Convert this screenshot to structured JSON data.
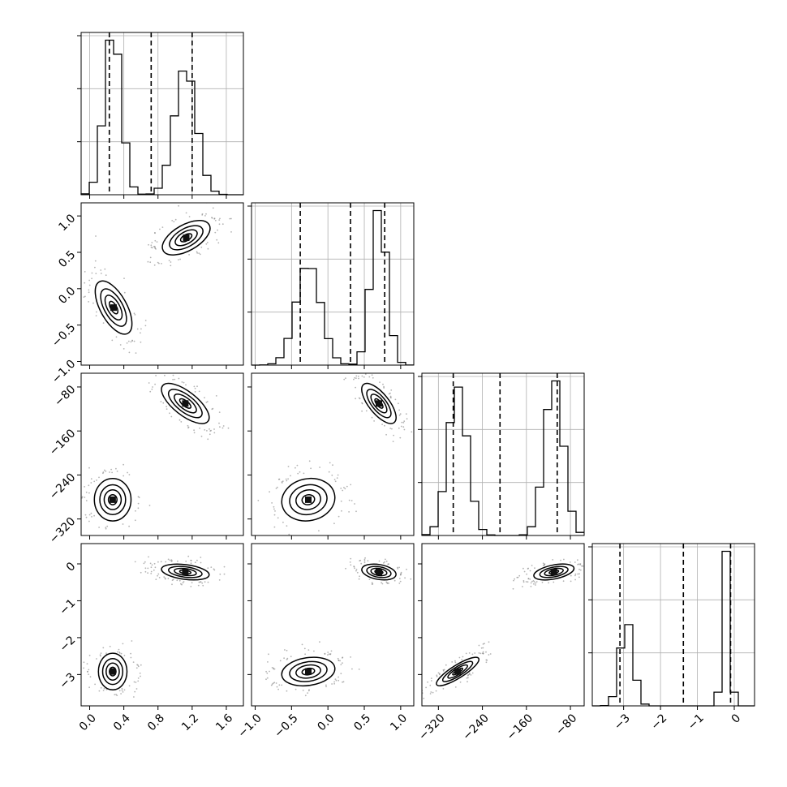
{
  "chart_data": {
    "type": "corner",
    "n_params": 4,
    "params": [
      {
        "range": [
          -0.1,
          1.8
        ],
        "ticks": [
          0.0,
          0.4,
          0.8,
          1.2,
          1.6
        ],
        "tick_labels": [
          "0.0",
          "0.4",
          "0.8",
          "1.2",
          "1.6"
        ],
        "modes": [
          {
            "mean": 0.27,
            "sd": 0.1,
            "w": 0.5
          },
          {
            "mean": 1.12,
            "sd": 0.13,
            "w": 0.5
          }
        ],
        "quantiles": [
          0.23,
          0.72,
          1.2
        ]
      },
      {
        "range": [
          -1.05,
          1.18
        ],
        "ticks": [
          -1.0,
          -0.5,
          0.0,
          0.5,
          1.0
        ],
        "tick_labels": [
          "−1.0",
          "−0.5",
          "0.0",
          "0.5",
          "1.0"
        ],
        "modes": [
          {
            "mean": -0.27,
            "sd": 0.17,
            "w": 0.5
          },
          {
            "mean": 0.7,
            "sd": 0.11,
            "w": 0.5
          }
        ],
        "quantiles": [
          -0.38,
          0.31,
          0.78
        ]
      },
      {
        "range": [
          -350,
          -55
        ],
        "ticks": [
          -320,
          -240,
          -160,
          -80
        ],
        "tick_labels": [
          "−320",
          "−240",
          "−160",
          "−80"
        ],
        "modes": [
          {
            "mean": -285,
            "sd": 18,
            "w": 0.5
          },
          {
            "mean": -110,
            "sd": 17,
            "w": 0.5
          }
        ],
        "quantiles": [
          -293,
          -208,
          -104
        ]
      },
      {
        "range": [
          -3.85,
          0.55
        ],
        "ticks": [
          -3,
          -2,
          -1,
          0
        ],
        "tick_labels": [
          "−3",
          "−2",
          "−1",
          "0"
        ],
        "modes": [
          {
            "mean": -2.92,
            "sd": 0.18,
            "w": 0.5
          },
          {
            "mean": -0.22,
            "sd": 0.1,
            "w": 0.5
          }
        ],
        "quantiles": [
          -3.1,
          -1.38,
          -0.1
        ]
      }
    ],
    "pairs": [
      {
        "row": 1,
        "col": 0,
        "clusters": [
          {
            "cx": 0.28,
            "cy": -0.26,
            "sx": 0.1,
            "sy": 0.17,
            "rho": -0.6
          },
          {
            "cx": 1.13,
            "cy": 0.7,
            "sx": 0.13,
            "sy": 0.11,
            "rho": 0.55
          }
        ]
      },
      {
        "row": 2,
        "col": 0,
        "clusters": [
          {
            "cx": 0.27,
            "cy": -285,
            "sx": 0.1,
            "sy": 18,
            "rho": 0.0
          },
          {
            "cx": 1.12,
            "cy": -110,
            "sx": 0.13,
            "sy": 17,
            "rho": -0.7
          }
        ]
      },
      {
        "row": 2,
        "col": 1,
        "clusters": [
          {
            "cx": -0.27,
            "cy": -285,
            "sx": 0.17,
            "sy": 18,
            "rho": 0.1
          },
          {
            "cx": 0.7,
            "cy": -110,
            "sx": 0.11,
            "sy": 17,
            "rho": -0.7
          }
        ]
      },
      {
        "row": 3,
        "col": 0,
        "clusters": [
          {
            "cx": 0.27,
            "cy": -2.92,
            "sx": 0.1,
            "sy": 0.18,
            "rho": 0.0
          },
          {
            "cx": 1.12,
            "cy": -0.22,
            "sx": 0.13,
            "sy": 0.1,
            "rho": -0.35
          }
        ]
      },
      {
        "row": 3,
        "col": 1,
        "clusters": [
          {
            "cx": -0.27,
            "cy": -2.92,
            "sx": 0.17,
            "sy": 0.18,
            "rho": 0.2
          },
          {
            "cx": 0.7,
            "cy": -0.22,
            "sx": 0.11,
            "sy": 0.1,
            "rho": -0.3
          }
        ]
      },
      {
        "row": 3,
        "col": 2,
        "clusters": [
          {
            "cx": -285,
            "cy": -2.92,
            "sx": 18,
            "sy": 0.18,
            "rho": 0.85
          },
          {
            "cx": -110,
            "cy": -0.22,
            "sx": 17,
            "sy": 0.1,
            "rho": 0.45
          }
        ]
      }
    ],
    "grid": true,
    "title": "",
    "labels": [
      "",
      "",
      "",
      ""
    ],
    "contour_levels": [
      0.12,
      0.39,
      0.68,
      0.9
    ]
  }
}
